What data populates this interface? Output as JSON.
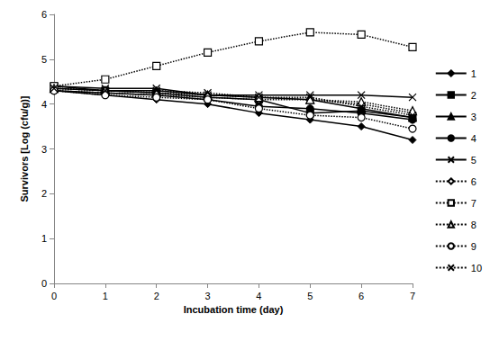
{
  "chart_data": {
    "type": "line",
    "x_label": "Incubation time (day)",
    "y_label": "Survivors [Log (cfu/g)]",
    "x": [
      0,
      1,
      2,
      3,
      4,
      5,
      6,
      7
    ],
    "xlim": [
      0,
      7
    ],
    "xticks": [
      0,
      1,
      2,
      3,
      4,
      5,
      6,
      7
    ],
    "ylim": [
      0,
      6
    ],
    "yticks": [
      0,
      1,
      2,
      3,
      4,
      5,
      6
    ],
    "grid": false,
    "legend": "right",
    "series": [
      {
        "name": "1",
        "color": "#000000",
        "marker": "diamond",
        "line_style": "solid",
        "values": [
          4.3,
          4.2,
          4.1,
          4.0,
          3.8,
          3.65,
          3.5,
          3.2
        ]
      },
      {
        "name": "2",
        "color": "#000000",
        "marker": "square",
        "line_style": "solid",
        "values": [
          4.4,
          4.3,
          4.25,
          4.15,
          4.1,
          3.8,
          3.85,
          3.7
        ]
      },
      {
        "name": "3",
        "color": "#000000",
        "marker": "triangle",
        "line_style": "solid",
        "values": [
          4.35,
          4.3,
          4.3,
          4.2,
          4.15,
          4.1,
          3.9,
          3.7
        ]
      },
      {
        "name": "4",
        "color": "#000000",
        "marker": "circle",
        "line_style": "solid",
        "values": [
          4.3,
          4.25,
          4.2,
          4.1,
          3.95,
          3.9,
          3.8,
          3.65
        ]
      },
      {
        "name": "5",
        "color": "#000000",
        "marker": "x",
        "line_style": "solid",
        "values": [
          4.4,
          4.35,
          4.35,
          4.2,
          4.2,
          4.2,
          4.2,
          4.15
        ]
      },
      {
        "name": "6",
        "color": "#000000",
        "marker": "diamond-open",
        "line_style": "dotted",
        "values": [
          4.3,
          4.25,
          4.2,
          4.15,
          4.1,
          4.1,
          4.0,
          3.8
        ]
      },
      {
        "name": "7",
        "color": "#000000",
        "marker": "square-open",
        "line_style": "dotted",
        "values": [
          4.4,
          4.55,
          4.85,
          5.15,
          5.4,
          5.6,
          5.55,
          5.27
        ]
      },
      {
        "name": "8",
        "color": "#000000",
        "marker": "triangle-open",
        "line_style": "dotted",
        "values": [
          4.35,
          4.3,
          4.25,
          4.2,
          4.15,
          4.1,
          4.05,
          3.85
        ]
      },
      {
        "name": "9",
        "color": "#000000",
        "marker": "circle-open",
        "line_style": "dotted",
        "values": [
          4.3,
          4.2,
          4.15,
          4.1,
          3.9,
          3.75,
          3.7,
          3.45
        ]
      },
      {
        "name": "10",
        "color": "#000000",
        "marker": "x",
        "line_style": "dotted",
        "values": [
          4.35,
          4.3,
          4.3,
          4.25,
          4.15,
          4.15,
          3.95,
          3.75
        ]
      }
    ]
  }
}
